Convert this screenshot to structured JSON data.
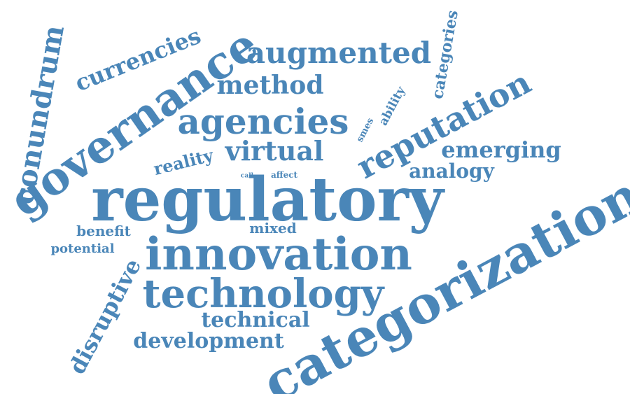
{
  "cloud": {
    "color": "#4a86b8",
    "words": [
      "regulatory",
      "categorization",
      "governance",
      "innovation",
      "technology",
      "agencies",
      "reputation",
      "augmented",
      "virtual",
      "conundrum",
      "currencies",
      "method",
      "emerging",
      "analogy",
      "technical",
      "development",
      "disruptive",
      "reality",
      "benefit",
      "mixed",
      "potential",
      "categories",
      "ability",
      "smes",
      "affect",
      "call"
    ]
  }
}
